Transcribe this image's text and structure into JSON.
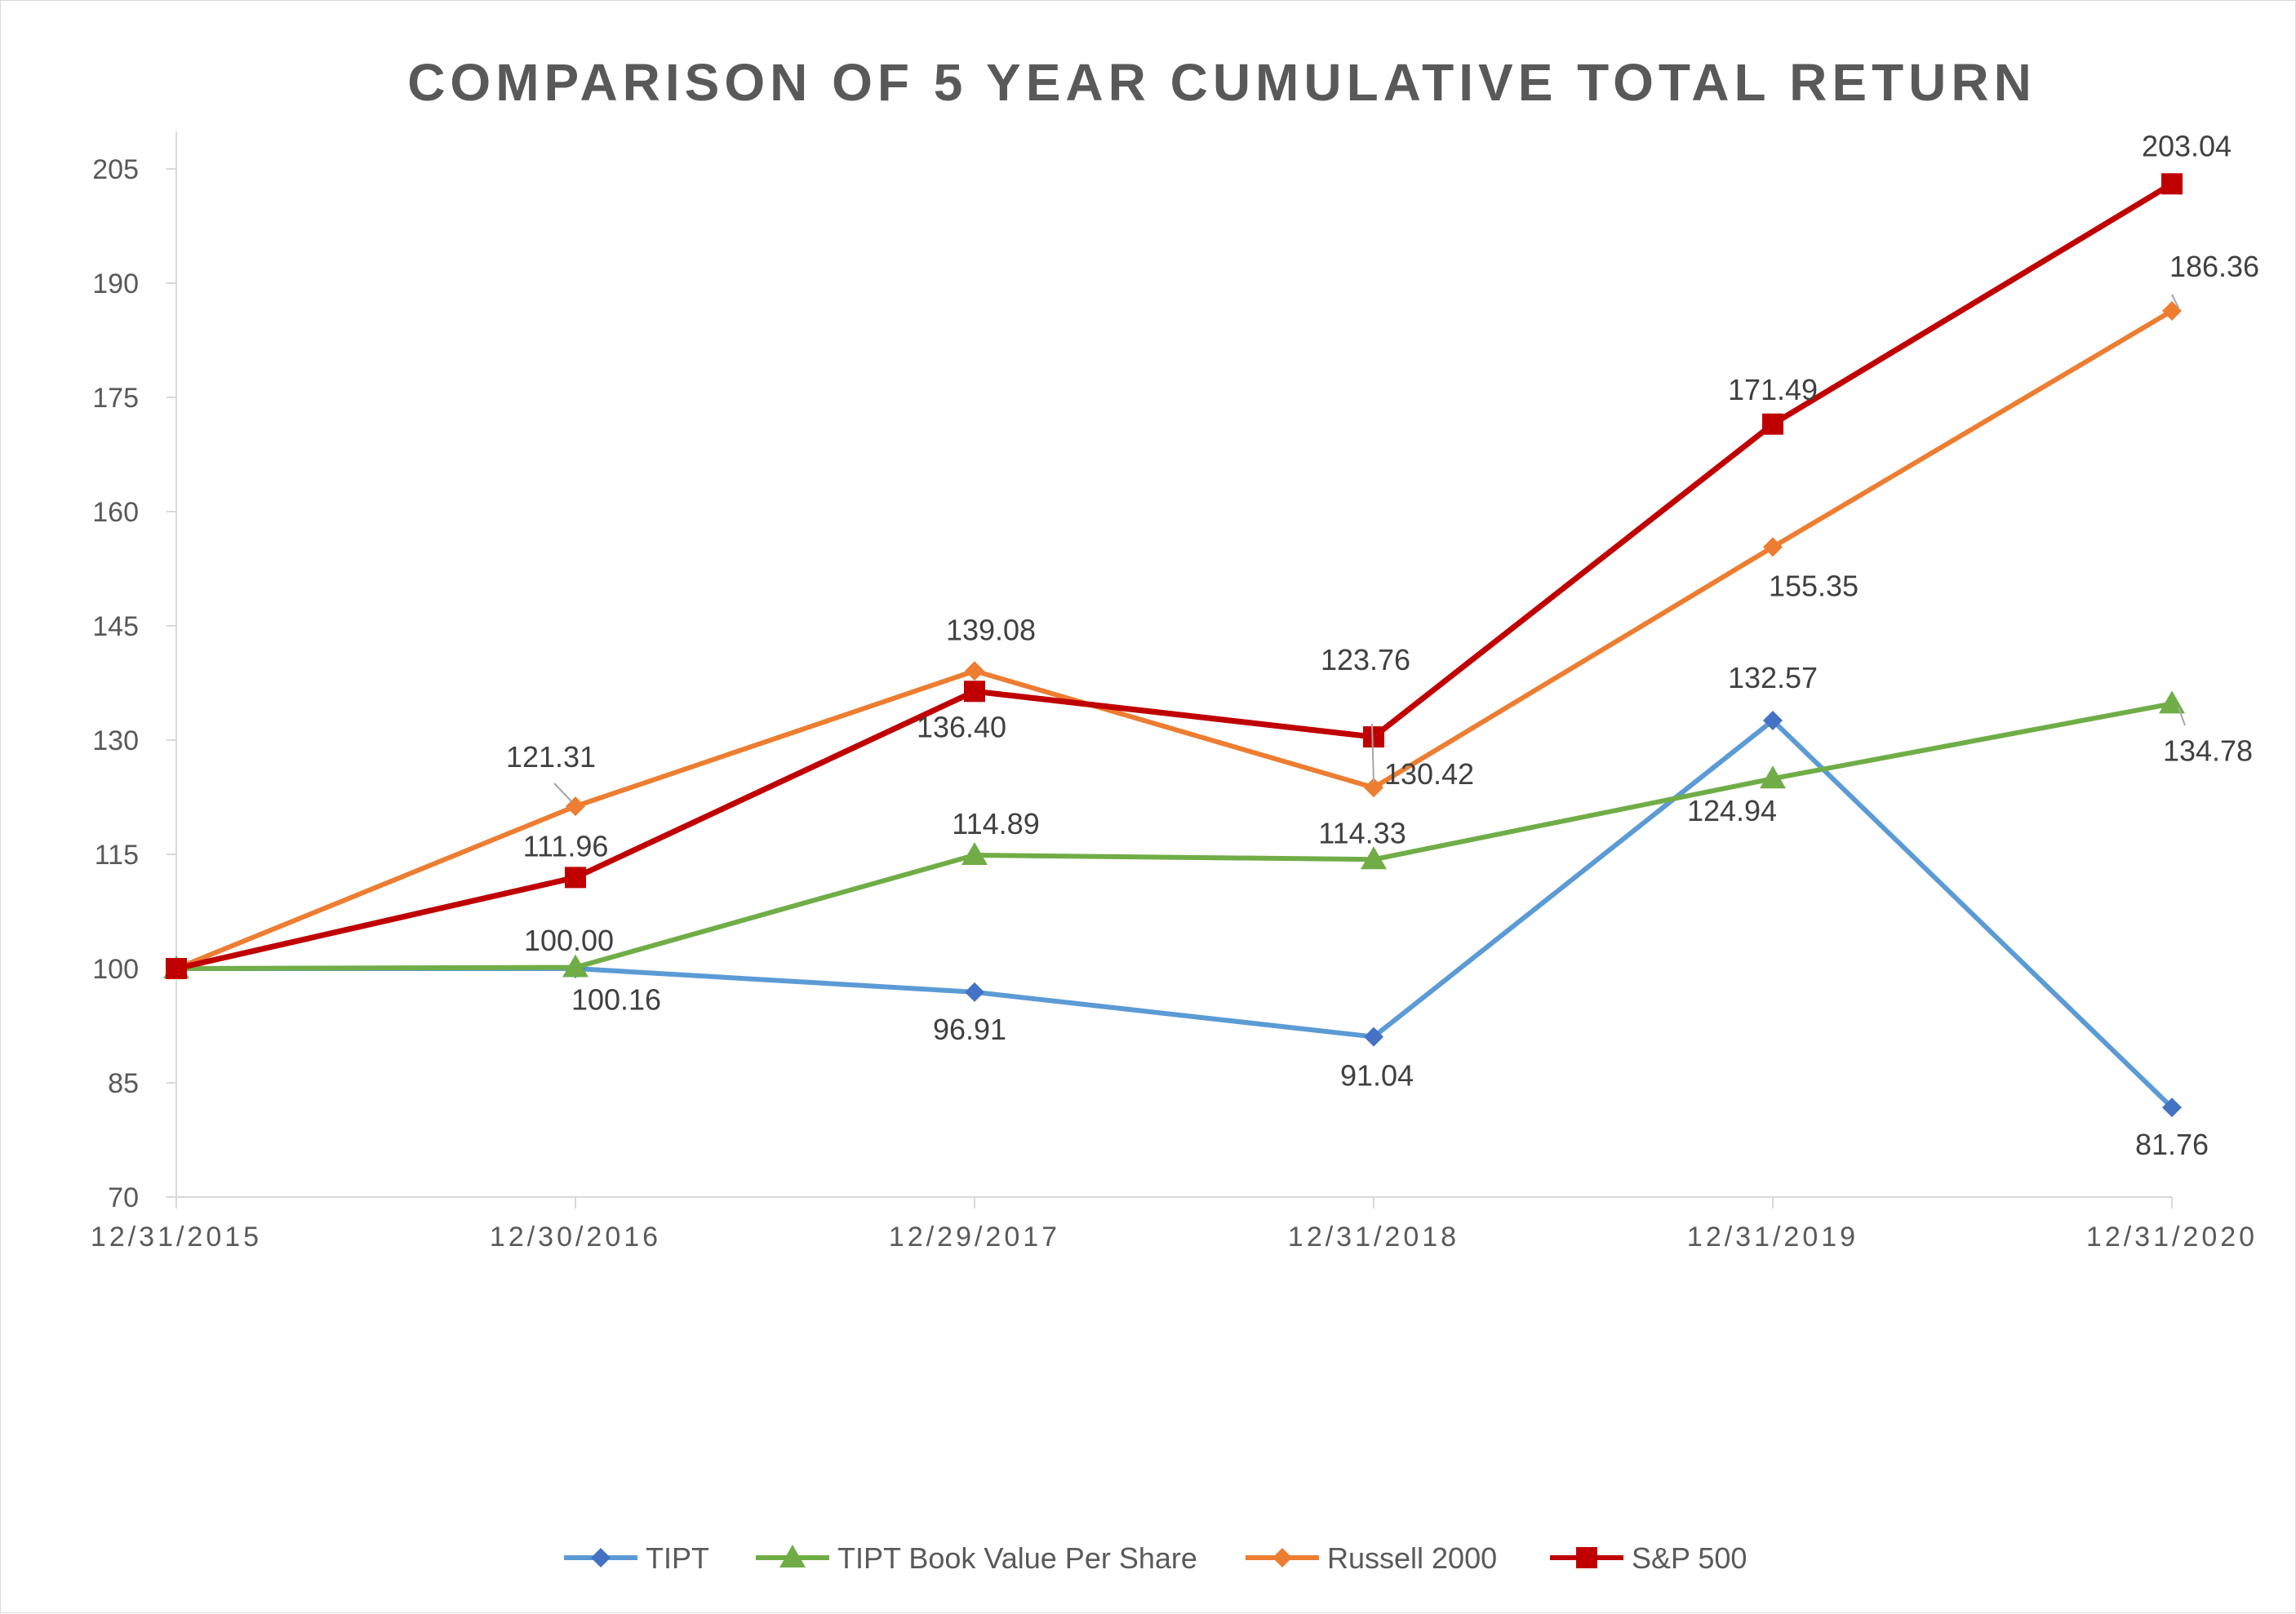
{
  "chart_data": {
    "type": "line",
    "title": "COMPARISON OF 5 YEAR CUMULATIVE TOTAL RETURN",
    "xlabel": "",
    "ylabel": "",
    "categories": [
      "12/31/2015",
      "12/30/2016",
      "12/29/2017",
      "12/31/2018",
      "12/31/2019",
      "12/31/2020"
    ],
    "ylim": [
      70,
      205
    ],
    "yticks": [
      70,
      85,
      100,
      115,
      130,
      145,
      160,
      175,
      190,
      205
    ],
    "grid": false,
    "legend_position": "bottom",
    "series": [
      {
        "name": "TIPT",
        "color": "#5b9bd5",
        "marker": "diamond",
        "values": [
          100,
          100.0,
          96.91,
          91.04,
          132.57,
          81.76
        ],
        "labels": [
          "",
          "100.00",
          "96.91",
          "91.04",
          "132.57",
          "81.76"
        ]
      },
      {
        "name": "TIPT Book Value Per Share",
        "color": "#70ad47",
        "marker": "triangle",
        "values": [
          100,
          100.16,
          114.89,
          114.33,
          124.94,
          134.78
        ],
        "labels": [
          "",
          "100.16",
          "114.89",
          "114.33",
          "124.94",
          "134.78"
        ]
      },
      {
        "name": "Russell 2000",
        "color": "#ed7d31",
        "marker": "diamond",
        "values": [
          100,
          121.31,
          139.08,
          123.76,
          155.35,
          186.36
        ],
        "labels": [
          "",
          "121.31",
          "139.08",
          "123.76",
          "155.35",
          "186.36"
        ]
      },
      {
        "name": "S&P 500",
        "color": "#c00000",
        "marker": "square",
        "values": [
          100,
          111.96,
          136.4,
          130.42,
          171.49,
          203.04
        ],
        "labels": [
          "",
          "111.96",
          "136.40",
          "130.42",
          "171.49",
          "203.04"
        ]
      }
    ]
  }
}
